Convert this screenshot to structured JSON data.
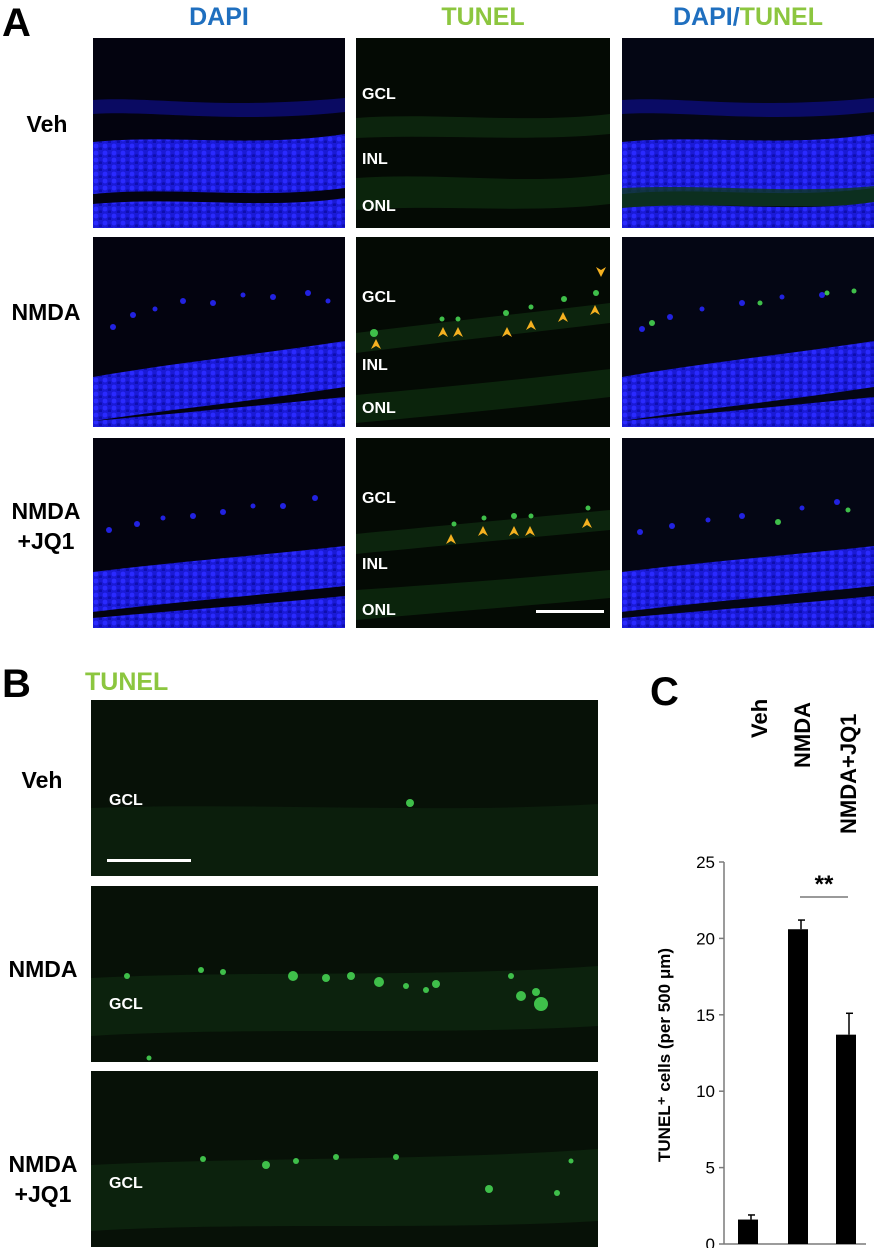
{
  "panel_a": {
    "letter": "A",
    "columns": {
      "dapi": "DAPI",
      "tunel": "TUNEL",
      "merge_part1": "DAPI",
      "merge_sep": "/",
      "merge_part2": "TUNEL"
    },
    "rows": [
      {
        "label_line1": "Veh",
        "label_line2": ""
      },
      {
        "label_line1": "NMDA",
        "label_line2": ""
      },
      {
        "label_line1": "NMDA",
        "label_line2": "+JQ1"
      }
    ],
    "layers": {
      "gcl": "GCL",
      "inl": "INL",
      "onl": "ONL"
    }
  },
  "panel_b": {
    "letter": "B",
    "title": "TUNEL",
    "rows": [
      {
        "label_line1": "Veh",
        "label_line2": ""
      },
      {
        "label_line1": "NMDA",
        "label_line2": ""
      },
      {
        "label_line1": "NMDA",
        "label_line2": "+JQ1"
      }
    ],
    "layer": "GCL"
  },
  "panel_c": {
    "letter": "C",
    "chart_data": {
      "type": "bar",
      "categories": [
        "Veh",
        "NMDA",
        "NMDA+JQ1"
      ],
      "values": [
        1.6,
        20.6,
        13.7
      ],
      "errors": [
        0.3,
        0.6,
        1.4
      ],
      "ylabel": "TUNEL⁺ cells (per 500 μm)",
      "ylim": [
        0,
        25
      ],
      "yticks": [
        0,
        5,
        10,
        15,
        20,
        25
      ],
      "significance": {
        "between": [
          "NMDA",
          "NMDA+JQ1"
        ],
        "label": "**"
      },
      "bar_color": "#000000",
      "grid": false
    }
  },
  "colors": {
    "dapi_blue": "#1f6fbf",
    "tunel_green": "#8cc63f",
    "arrowhead": "#f5b120"
  }
}
